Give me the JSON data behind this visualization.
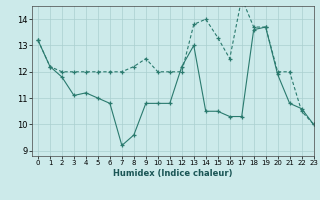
{
  "line1_x": [
    0,
    1,
    2,
    3,
    4,
    5,
    6,
    7,
    8,
    9,
    10,
    11,
    12,
    13,
    14,
    15,
    16,
    17,
    18,
    19,
    20,
    21,
    22,
    23
  ],
  "line1_y": [
    13.2,
    12.2,
    11.8,
    11.1,
    11.2,
    11.0,
    10.8,
    9.2,
    9.6,
    10.8,
    10.8,
    10.8,
    12.2,
    13.0,
    10.5,
    10.5,
    10.3,
    10.3,
    13.6,
    13.7,
    11.9,
    10.8,
    10.6,
    10.0
  ],
  "line2_x": [
    0,
    1,
    2,
    3,
    4,
    5,
    6,
    7,
    8,
    9,
    10,
    11,
    12,
    13,
    14,
    15,
    16,
    17,
    18,
    19,
    20,
    21,
    22,
    23
  ],
  "line2_y": [
    13.2,
    12.2,
    12.0,
    12.0,
    12.0,
    12.0,
    12.0,
    12.0,
    12.2,
    12.5,
    12.0,
    12.0,
    12.0,
    13.8,
    14.0,
    13.3,
    12.5,
    14.8,
    13.7,
    13.7,
    12.0,
    12.0,
    10.5,
    10.0
  ],
  "color": "#2a7a6e",
  "bg_color": "#cceaea",
  "xlabel": "Humidex (Indice chaleur)",
  "ylim": [
    8.8,
    14.5
  ],
  "xlim": [
    -0.5,
    23
  ],
  "yticks": [
    9,
    10,
    11,
    12,
    13,
    14
  ],
  "xticks": [
    0,
    1,
    2,
    3,
    4,
    5,
    6,
    7,
    8,
    9,
    10,
    11,
    12,
    13,
    14,
    15,
    16,
    17,
    18,
    19,
    20,
    21,
    22,
    23
  ],
  "grid_color": "#aacfcf",
  "lw": 0.8,
  "ms": 3.5
}
